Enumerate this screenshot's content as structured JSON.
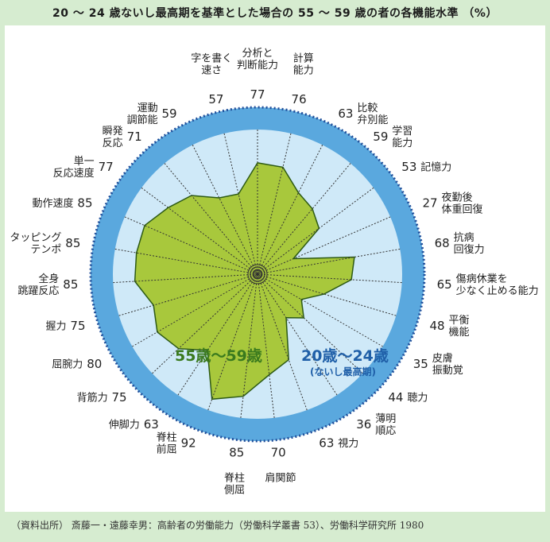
{
  "title": "20 ～ 24 歳ないし最高期を基準とした場合の 55 ～ 59 歳の者の各機能水準 （%）",
  "source": "（資料出所） 斎藤一・遠藤幸男：高齢者の労働能力（労働科学叢書 53）、労働科学研究所 1980",
  "colors": {
    "background": "#d6ecd0",
    "outer_disk": "#5aa8de",
    "inner_disk": "#cfe9f8",
    "polygon": "#a8c83c",
    "polygon_stroke": "#2d5a14",
    "spoke": "#333333",
    "ring_dots": "#1f4e9a"
  },
  "chart_data": {
    "type": "radar",
    "rlim": [
      0,
      100
    ],
    "series": [
      {
        "name": "55歳～59歳",
        "values": [
          77,
          76,
          63,
          59,
          53,
          27,
          68,
          65,
          48,
          35,
          44,
          36,
          63,
          70,
          85,
          92,
          63,
          75,
          80,
          75,
          85,
          85,
          85,
          77,
          71,
          59,
          57
        ]
      },
      {
        "name": "20歳～24歳",
        "subtitle": "(ないし最高期)",
        "values": [
          100,
          100,
          100,
          100,
          100,
          100,
          100,
          100,
          100,
          100,
          100,
          100,
          100,
          100,
          100,
          100,
          100,
          100,
          100,
          100,
          100,
          100,
          100,
          100,
          100,
          100,
          100
        ]
      }
    ],
    "categories": [
      [
        "分析と",
        "判断能力"
      ],
      [
        "計算",
        "能力"
      ],
      [
        "比較",
        "弁別能"
      ],
      [
        "学習",
        "能力"
      ],
      [
        "記憶力"
      ],
      [
        "夜勤後",
        "体重回復"
      ],
      [
        "抗病",
        "回復力"
      ],
      [
        "傷病休業を",
        "少なく止める能力"
      ],
      [
        "平衡",
        "機能"
      ],
      [
        "皮膚",
        "振動覚"
      ],
      [
        "聴力"
      ],
      [
        "薄明",
        "順応"
      ],
      [
        "視力"
      ],
      [
        "肩関節"
      ],
      [
        "脊柱",
        "側屈"
      ],
      [
        "脊柱",
        "前屈"
      ],
      [
        "伸脚力"
      ],
      [
        "背筋力"
      ],
      [
        "屈腕力"
      ],
      [
        "握力"
      ],
      [
        "全身",
        "跳躍反応"
      ],
      [
        "タッピング",
        "テンポ"
      ],
      [
        "動作速度"
      ],
      [
        "単一",
        "反応速度"
      ],
      [
        "瞬発",
        "反応"
      ],
      [
        "運動",
        "調節能"
      ],
      [
        "字を書く",
        "速さ"
      ]
    ],
    "grid": false
  }
}
